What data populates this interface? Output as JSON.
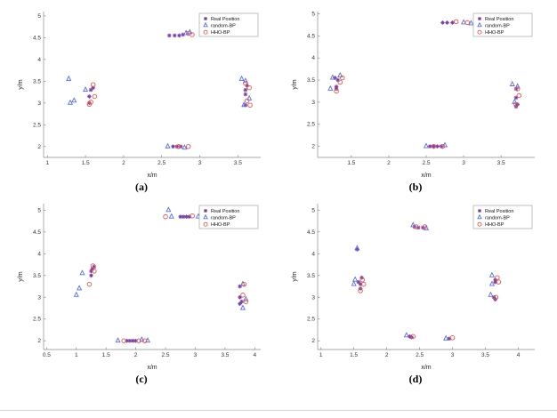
{
  "page": {
    "background": "#ffffff"
  },
  "colors": {
    "real": "#7a3fa0",
    "random_bp": "#5a6ee0",
    "hho_bp": "#e0574f",
    "axis": "#8a8a8a",
    "tick_text": "#333333"
  },
  "chart_data": [
    {
      "type": "scatter",
      "label": "(a)",
      "xlabel": "x/m",
      "ylabel": "y/m",
      "xlim": [
        0.95,
        3.8
      ],
      "ylim": [
        1.75,
        5.1
      ],
      "xticks": [
        1,
        1.5,
        2,
        2.5,
        3,
        3.5
      ],
      "yticks": [
        2,
        2.5,
        3,
        3.5,
        4,
        4.5,
        5
      ],
      "legend_pos": "top-right",
      "series": [
        {
          "name": "Real Position",
          "marker": "asterisk",
          "color": "#7a3fa0",
          "points": [
            [
              1.55,
              3.0
            ],
            [
              1.55,
              3.15
            ],
            [
              1.57,
              3.3
            ],
            [
              1.6,
              3.35
            ],
            [
              2.6,
              4.55
            ],
            [
              2.67,
              4.55
            ],
            [
              2.73,
              4.55
            ],
            [
              2.78,
              4.57
            ],
            [
              2.65,
              2.0
            ],
            [
              2.7,
              2.0
            ],
            [
              2.75,
              2.0
            ],
            [
              3.6,
              3.3
            ],
            [
              3.62,
              3.4
            ],
            [
              3.6,
              3.2
            ],
            [
              3.6,
              2.95
            ]
          ]
        },
        {
          "name": "random-BP",
          "marker": "triangle",
          "color": "#5a6ee0",
          "points": [
            [
              1.3,
              3.0
            ],
            [
              1.35,
              3.05
            ],
            [
              1.28,
              3.55
            ],
            [
              1.5,
              3.3
            ],
            [
              2.82,
              4.6
            ],
            [
              2.87,
              4.62
            ],
            [
              2.58,
              2.0
            ],
            [
              2.8,
              1.97
            ],
            [
              3.55,
              3.55
            ],
            [
              3.6,
              3.5
            ],
            [
              3.58,
              2.95
            ],
            [
              3.65,
              3.1
            ]
          ]
        },
        {
          "name": "HHO-BP",
          "marker": "circle",
          "color": "#e0574f",
          "points": [
            [
              1.6,
              3.42
            ],
            [
              1.62,
              3.15
            ],
            [
              1.57,
              3.02
            ],
            [
              1.55,
              2.97
            ],
            [
              2.85,
              4.6
            ],
            [
              2.9,
              4.57
            ],
            [
              2.72,
              2.0
            ],
            [
              2.85,
              2.0
            ],
            [
              3.65,
              3.35
            ],
            [
              3.62,
              3.05
            ],
            [
              3.66,
              2.95
            ],
            [
              3.6,
              3.45
            ]
          ]
        }
      ]
    },
    {
      "type": "scatter",
      "label": "(b)",
      "xlabel": "x/m",
      "ylabel": "y/m",
      "xlim": [
        1.05,
        3.95
      ],
      "ylim": [
        1.75,
        5.05
      ],
      "xticks": [
        1.5,
        2,
        2.5,
        3,
        3.5
      ],
      "yticks": [
        2,
        2.5,
        3,
        3.5,
        4,
        4.5,
        5
      ],
      "legend_pos": "top-right",
      "series": [
        {
          "name": "Real Position",
          "marker": "asterisk",
          "color": "#7a3fa0",
          "points": [
            [
              1.3,
              3.3
            ],
            [
              1.3,
              3.35
            ],
            [
              1.32,
              3.5
            ],
            [
              1.28,
              3.55
            ],
            [
              2.72,
              4.8
            ],
            [
              2.78,
              4.8
            ],
            [
              2.85,
              4.8
            ],
            [
              2.55,
              2.0
            ],
            [
              2.6,
              2.0
            ],
            [
              2.65,
              2.0
            ],
            [
              2.7,
              2.0
            ],
            [
              3.7,
              3.3
            ],
            [
              3.7,
              3.1
            ],
            [
              3.72,
              2.95
            ],
            [
              3.7,
              2.9
            ]
          ]
        },
        {
          "name": "random-BP",
          "marker": "triangle",
          "color": "#5a6ee0",
          "points": [
            [
              1.22,
              3.3
            ],
            [
              1.25,
              3.55
            ],
            [
              1.35,
              3.6
            ],
            [
              3.0,
              4.8
            ],
            [
              3.1,
              4.78
            ],
            [
              2.5,
              2.0
            ],
            [
              2.75,
              2.02
            ],
            [
              3.65,
              3.4
            ],
            [
              3.68,
              3.0
            ],
            [
              3.72,
              3.35
            ]
          ]
        },
        {
          "name": "HHO-BP",
          "marker": "circle",
          "color": "#e0574f",
          "points": [
            [
              1.35,
              3.45
            ],
            [
              1.38,
              3.55
            ],
            [
              1.3,
              3.25
            ],
            [
              2.9,
              4.82
            ],
            [
              3.05,
              4.8
            ],
            [
              2.6,
              2.0
            ],
            [
              2.72,
              2.0
            ],
            [
              3.72,
              3.3
            ],
            [
              3.7,
              2.95
            ],
            [
              3.74,
              3.15
            ]
          ]
        }
      ]
    },
    {
      "type": "scatter",
      "label": "(c)",
      "xlabel": "x/m",
      "ylabel": "y/m",
      "xlim": [
        0.45,
        4.1
      ],
      "ylim": [
        1.8,
        5.15
      ],
      "xticks": [
        0.5,
        1,
        1.5,
        2,
        2.5,
        3,
        3.5,
        4
      ],
      "yticks": [
        2,
        2.5,
        3,
        3.5,
        4,
        4.5,
        5
      ],
      "legend_pos": "top-right",
      "series": [
        {
          "name": "Real Position",
          "marker": "asterisk",
          "color": "#7a3fa0",
          "points": [
            [
              1.25,
              3.6
            ],
            [
              1.27,
              3.65
            ],
            [
              1.3,
              3.7
            ],
            [
              1.25,
              3.5
            ],
            [
              2.75,
              4.85
            ],
            [
              2.8,
              4.85
            ],
            [
              2.85,
              4.85
            ],
            [
              2.9,
              4.85
            ],
            [
              1.85,
              2.0
            ],
            [
              1.9,
              2.0
            ],
            [
              1.95,
              2.0
            ],
            [
              2.0,
              2.0
            ],
            [
              3.75,
              3.25
            ],
            [
              3.75,
              3.0
            ],
            [
              3.78,
              2.9
            ],
            [
              3.75,
              2.85
            ]
          ]
        },
        {
          "name": "random-BP",
          "marker": "triangle",
          "color": "#5a6ee0",
          "points": [
            [
              1.05,
              3.2
            ],
            [
              1.0,
              3.05
            ],
            [
              1.1,
              3.55
            ],
            [
              2.55,
              5.0
            ],
            [
              2.6,
              4.85
            ],
            [
              3.05,
              4.85
            ],
            [
              1.7,
              2.0
            ],
            [
              2.1,
              2.02
            ],
            [
              2.2,
              2.0
            ],
            [
              3.8,
              3.3
            ],
            [
              3.85,
              2.95
            ],
            [
              3.8,
              2.75
            ]
          ]
        },
        {
          "name": "HHO-BP",
          "marker": "circle",
          "color": "#e0574f",
          "points": [
            [
              1.22,
              3.3
            ],
            [
              1.3,
              3.6
            ],
            [
              1.28,
              3.72
            ],
            [
              2.5,
              4.85
            ],
            [
              2.95,
              4.87
            ],
            [
              3.1,
              4.85
            ],
            [
              1.8,
              2.0
            ],
            [
              2.05,
              2.0
            ],
            [
              2.15,
              2.0
            ],
            [
              3.82,
              3.3
            ],
            [
              3.8,
              3.05
            ],
            [
              3.85,
              2.9
            ]
          ]
        }
      ]
    },
    {
      "type": "scatter",
      "label": "(d)",
      "xlabel": "x/m",
      "ylabel": "y/m",
      "xlim": [
        0.95,
        4.25
      ],
      "ylim": [
        1.8,
        5.15
      ],
      "xticks": [
        1,
        1.5,
        2,
        2.5,
        3,
        3.5,
        4
      ],
      "yticks": [
        2,
        2.5,
        3,
        3.5,
        4,
        4.5,
        5
      ],
      "legend_pos": "top-right",
      "series": [
        {
          "name": "Real Position",
          "marker": "asterisk",
          "color": "#7a3fa0",
          "points": [
            [
              1.57,
              3.35
            ],
            [
              1.6,
              3.3
            ],
            [
              1.6,
              3.2
            ],
            [
              1.62,
              3.45
            ],
            [
              1.55,
              4.1
            ],
            [
              2.42,
              4.62
            ],
            [
              2.48,
              4.6
            ],
            [
              2.55,
              4.6
            ],
            [
              2.35,
              2.1
            ],
            [
              2.38,
              2.08
            ],
            [
              2.95,
              2.05
            ],
            [
              3.65,
              3.35
            ],
            [
              3.65,
              3.4
            ],
            [
              3.63,
              3.0
            ],
            [
              3.65,
              2.95
            ]
          ]
        },
        {
          "name": "random-BP",
          "marker": "triangle",
          "color": "#5a6ee0",
          "points": [
            [
              1.5,
              3.3
            ],
            [
              1.52,
              3.4
            ],
            [
              1.55,
              4.12
            ],
            [
              2.4,
              4.65
            ],
            [
              2.6,
              4.58
            ],
            [
              2.3,
              2.12
            ],
            [
              2.9,
              2.05
            ],
            [
              3.6,
              3.5
            ],
            [
              3.6,
              3.3
            ],
            [
              3.58,
              3.05
            ]
          ]
        },
        {
          "name": "HHO-BP",
          "marker": "circle",
          "color": "#e0574f",
          "points": [
            [
              1.63,
              3.4
            ],
            [
              1.65,
              3.3
            ],
            [
              1.6,
              3.15
            ],
            [
              2.45,
              4.62
            ],
            [
              2.58,
              4.62
            ],
            [
              2.4,
              2.1
            ],
            [
              3.0,
              2.07
            ],
            [
              3.68,
              3.45
            ],
            [
              3.7,
              3.35
            ],
            [
              3.66,
              3.0
            ]
          ]
        }
      ]
    }
  ]
}
